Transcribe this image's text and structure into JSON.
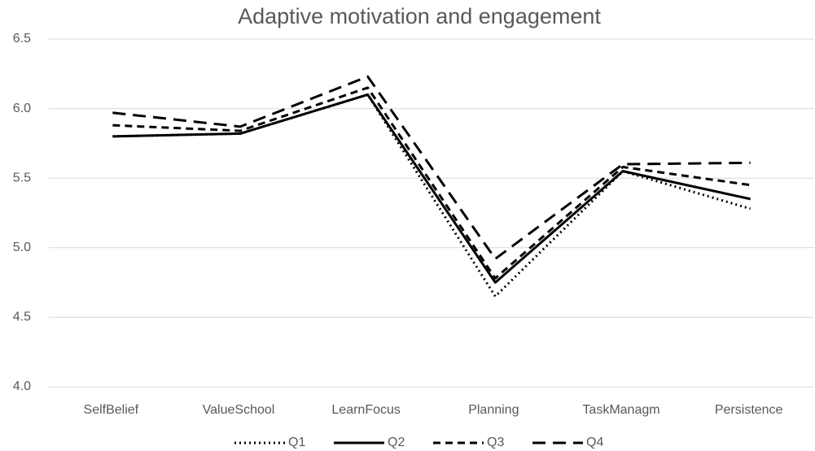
{
  "chart_data": {
    "type": "line",
    "title": "Adaptive motivation and engagement",
    "categories": [
      "SelfBelief",
      "ValueSchool",
      "LearnFocus",
      "Planning",
      "TaskManagm",
      "Persistence"
    ],
    "series": [
      {
        "name": "Q1",
        "color": "#000000",
        "dash": "dotted",
        "values": [
          5.8,
          5.82,
          6.1,
          4.65,
          5.55,
          5.28
        ]
      },
      {
        "name": "Q2",
        "color": "#000000",
        "dash": "solid",
        "values": [
          5.8,
          5.82,
          6.1,
          4.75,
          5.55,
          5.35
        ]
      },
      {
        "name": "Q3",
        "color": "#000000",
        "dash": "dashed",
        "values": [
          5.88,
          5.84,
          6.15,
          4.78,
          5.58,
          5.45
        ]
      },
      {
        "name": "Q4",
        "color": "#000000",
        "dash": "longdash",
        "values": [
          5.97,
          5.87,
          6.23,
          4.92,
          5.6,
          5.61
        ]
      }
    ],
    "ylim": [
      4.0,
      6.5
    ],
    "yticks": [
      {
        "value": 4.0,
        "label": "4.0"
      },
      4.5,
      {
        "value": 5.0,
        "label": "5.0"
      },
      5.5,
      {
        "value": 6.0,
        "label": "6.0"
      },
      6.5
    ],
    "grid": true,
    "legend": "bottom"
  }
}
